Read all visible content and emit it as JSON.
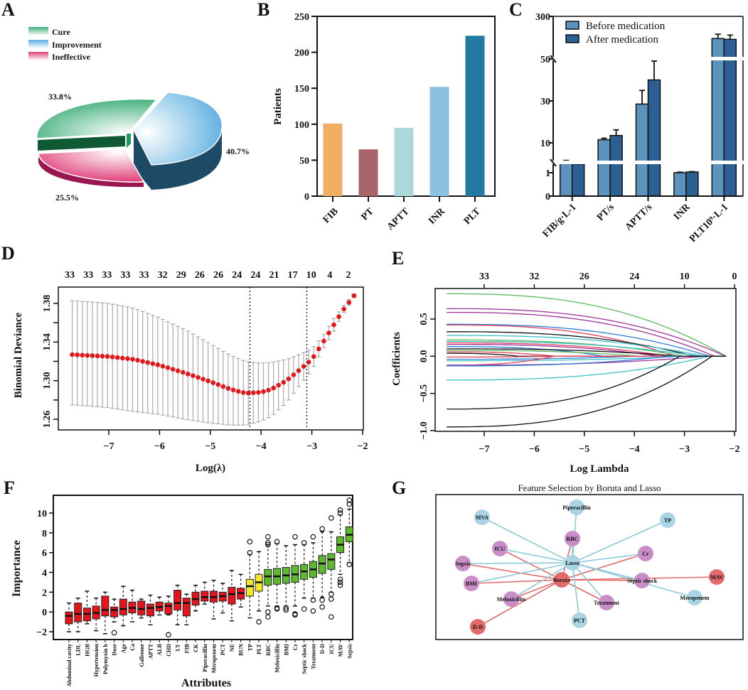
{
  "panels": {
    "A": "A",
    "B": "B",
    "C": "C",
    "D": "D",
    "E": "E",
    "F": "F",
    "G": "G"
  },
  "chart_data": [
    {
      "id": "A",
      "type": "pie",
      "style": "3d-exploded",
      "categories": [
        "Cure",
        "Improvement",
        "Ineffective"
      ],
      "values": [
        33.8,
        40.7,
        25.5
      ],
      "labels": [
        "33.8%",
        "40.7%",
        "25.5%"
      ],
      "colors": [
        "#3dae7a",
        "#5aaee0",
        "#e0407a"
      ],
      "side_colors": [
        "#0f5a35",
        "#1e4a66",
        "#9a1650"
      ],
      "legend": [
        "Cure",
        "Improvement",
        "Ineffective"
      ],
      "legend_position": "top-left"
    },
    {
      "id": "B",
      "type": "bar",
      "categories": [
        "FIB",
        "PT",
        "APTT",
        "INR",
        "PLT"
      ],
      "values": [
        101,
        65,
        95,
        152,
        223
      ],
      "colors": [
        "#f2ae62",
        "#a9646a",
        "#abd9db",
        "#8ec1df",
        "#2479a3"
      ],
      "xlabel": "",
      "ylabel": "Patients",
      "ylim": [
        0,
        250
      ],
      "yticks": [
        0,
        50,
        100,
        150,
        200,
        250
      ]
    },
    {
      "id": "C",
      "type": "bar",
      "categories": [
        "FIB/g·L-1",
        "PT/s",
        "APTT/s",
        "INR",
        "PLT10⁹·L-1"
      ],
      "series": [
        {
          "name": "Before medication",
          "values": [
            3.9,
            11.5,
            28.5,
            1.0,
            170
          ],
          "errors": [
            0.8,
            0.7,
            6.5,
            0.15,
            25
          ],
          "color": "#5b93bd"
        },
        {
          "name": "After medication",
          "values": [
            3.6,
            13.5,
            40,
            1.2,
            165
          ],
          "errors": [
            0.7,
            2.7,
            9,
            0.12,
            25
          ],
          "color": "#2c5f93"
        }
      ],
      "yaxis_breaks": [
        [
          1,
          10
        ],
        [
          50,
          300
        ]
      ],
      "yticks": [
        "0",
        "1",
        "10",
        "30",
        "50",
        "300"
      ],
      "xlabel": "",
      "ylabel": "",
      "legend_position": "top-left"
    },
    {
      "id": "D",
      "type": "scatter",
      "subtype": "lasso-cv-errorbar",
      "xlabel": "Log(λ)",
      "ylabel": "Binomial Deviance",
      "xlim": [
        -7.8,
        -2
      ],
      "ylim": [
        1.25,
        1.39
      ],
      "xticks": [
        "-7",
        "-6",
        "-5",
        "-4",
        "-3",
        "-2"
      ],
      "yticks": [
        "1.26",
        "1.30",
        "1.34",
        "1.38"
      ],
      "top_ticks": [
        "33",
        "33",
        "33",
        "33",
        "33",
        "32",
        "29",
        "26",
        "26",
        "24",
        "24",
        "21",
        "17",
        "10",
        "4",
        "2"
      ],
      "vlines": [
        -4.22,
        -3.1
      ],
      "point_color": "#e8161b",
      "error_color": "#aaaaaa",
      "x_start": -7.72,
      "x_end": -2.17,
      "n_points": 57,
      "curve_points": [
        [
          -7.72,
          1.327
        ],
        [
          -7.0,
          1.325
        ],
        [
          -6.5,
          1.322
        ],
        [
          -6.0,
          1.316
        ],
        [
          -5.5,
          1.308
        ],
        [
          -5.0,
          1.299
        ],
        [
          -4.6,
          1.291
        ],
        [
          -4.3,
          1.287
        ],
        [
          -4.0,
          1.288
        ],
        [
          -3.8,
          1.291
        ],
        [
          -3.5,
          1.3
        ],
        [
          -3.2,
          1.313
        ],
        [
          -3.0,
          1.322
        ],
        [
          -2.8,
          1.338
        ],
        [
          -2.6,
          1.355
        ],
        [
          -2.4,
          1.372
        ],
        [
          -2.17,
          1.388
        ]
      ],
      "upper_points": [
        [
          -7.72,
          1.383
        ],
        [
          -7.0,
          1.38
        ],
        [
          -6.5,
          1.375
        ],
        [
          -6.0,
          1.365
        ],
        [
          -5.5,
          1.353
        ],
        [
          -5.0,
          1.338
        ],
        [
          -4.6,
          1.326
        ],
        [
          -4.3,
          1.32
        ],
        [
          -4.0,
          1.318
        ],
        [
          -3.8,
          1.319
        ],
        [
          -3.5,
          1.322
        ],
        [
          -3.2,
          1.328
        ],
        [
          -3.0,
          1.333
        ],
        [
          -2.8,
          1.345
        ],
        [
          -2.6,
          1.362
        ],
        [
          -2.4,
          1.376
        ],
        [
          -2.17,
          1.39
        ]
      ],
      "lower_points": [
        [
          -7.72,
          1.275
        ],
        [
          -7.0,
          1.272
        ],
        [
          -6.5,
          1.268
        ],
        [
          -6.0,
          1.265
        ],
        [
          -5.5,
          1.26
        ],
        [
          -5.0,
          1.256
        ],
        [
          -4.6,
          1.254
        ],
        [
          -4.3,
          1.254
        ],
        [
          -4.0,
          1.258
        ],
        [
          -3.8,
          1.263
        ],
        [
          -3.5,
          1.277
        ],
        [
          -3.2,
          1.298
        ],
        [
          -3.0,
          1.311
        ],
        [
          -2.8,
          1.331
        ],
        [
          -2.6,
          1.348
        ],
        [
          -2.4,
          1.368
        ],
        [
          -2.17,
          1.386
        ]
      ]
    },
    {
      "id": "E",
      "type": "line",
      "subtype": "lasso-coefficient-path",
      "xlabel": "Log Lambda",
      "ylabel": "Coefficients",
      "xlim": [
        -7.9,
        -2
      ],
      "ylim": [
        -1.05,
        0.9
      ],
      "xticks": [
        "-7",
        "-6",
        "-5",
        "-4",
        "-3",
        "-2"
      ],
      "yticks": [
        "-1.0",
        "-0.5",
        "0.0",
        "0.5"
      ],
      "top_ticks": [
        "33",
        "32",
        "26",
        "24",
        "10",
        "0"
      ],
      "series": [
        {
          "start": 0.84,
          "zero_at": -2.17,
          "color": "#5cb85c"
        },
        {
          "start": 0.64,
          "zero_at": -2.17,
          "color": "#a0329a"
        },
        {
          "start": 0.59,
          "zero_at": -2.4,
          "color": "#a0329a"
        },
        {
          "start": 0.43,
          "zero_at": -2.5,
          "color": "#2a7fd4"
        },
        {
          "start": 0.42,
          "zero_at": -3.2,
          "color": "#e0405a"
        },
        {
          "start": 0.33,
          "zero_at": -2.8,
          "color": "#111111"
        },
        {
          "start": 0.28,
          "zero_at": -2.6,
          "color": "#3fbfc5"
        },
        {
          "start": 0.22,
          "zero_at": -3.0,
          "color": "#5cb85c"
        },
        {
          "start": 0.2,
          "zero_at": -2.7,
          "color": "#3fbfc5"
        },
        {
          "start": 0.18,
          "zero_at": -3.3,
          "color": "#e0405a"
        },
        {
          "start": 0.16,
          "zero_at": -3.5,
          "color": "#a0329a"
        },
        {
          "start": 0.13,
          "zero_at": -4.6,
          "color": "#2a7fd4"
        },
        {
          "start": 0.1,
          "zero_at": -3.1,
          "color": "#111111"
        },
        {
          "start": 0.08,
          "zero_at": -3.9,
          "color": "#5cb85c"
        },
        {
          "start": 0.06,
          "zero_at": -5.6,
          "color": "#e0405a"
        },
        {
          "start": 0.04,
          "zero_at": -6.3,
          "color": "#111111"
        },
        {
          "start": -0.01,
          "zero_at": -5.5,
          "color": "#e0405a"
        },
        {
          "start": -0.04,
          "zero_at": -4.0,
          "color": "#2a7fd4"
        },
        {
          "start": -0.06,
          "zero_at": -3.0,
          "color": "#3fbfc5"
        },
        {
          "start": -0.12,
          "zero_at": -5.6,
          "color": "#e0405a"
        },
        {
          "start": -0.12,
          "zero_at": -2.6,
          "color": "#a0329a"
        },
        {
          "start": -0.13,
          "zero_at": -3.3,
          "color": "#2a7fd4"
        },
        {
          "start": -0.32,
          "zero_at": -2.5,
          "color": "#3fbfc5"
        },
        {
          "start": -0.71,
          "zero_at": -3.1,
          "color": "#111111"
        },
        {
          "start": -0.95,
          "zero_at": -2.45,
          "color": "#111111"
        }
      ]
    },
    {
      "id": "F",
      "type": "box",
      "xlabel": "Attributes",
      "ylabel": "Importance",
      "ylim": [
        -2.7,
        11.5
      ],
      "yticks": [
        "-2",
        "0",
        "2",
        "4",
        "6",
        "8",
        "10"
      ],
      "categories": [
        "Abdominal cavity",
        "LDL",
        "HGB",
        "Hypertension",
        "Polymyxin b",
        "Dose",
        "Age",
        "Ca",
        "Gallstone",
        "APTT",
        "ALB",
        "CHD",
        "LY",
        "FIB",
        "CK",
        "Piperacillin",
        "Meropenem",
        "PCT",
        "NE",
        "BUN",
        "TP",
        "PLT",
        "RBC",
        "Meloxicillin",
        "BMI",
        "Cr",
        "Septic shock",
        "Treatment",
        "D-D",
        "ICU",
        "MAV",
        "Sepsis"
      ],
      "status": [
        "rejected",
        "rejected",
        "rejected",
        "rejected",
        "rejected",
        "rejected",
        "rejected",
        "rejected",
        "rejected",
        "rejected",
        "rejected",
        "rejected",
        "rejected",
        "rejected",
        "rejected",
        "rejected",
        "rejected",
        "rejected",
        "rejected",
        "rejected",
        "tentative",
        "tentative",
        "confirmed",
        "confirmed",
        "confirmed",
        "confirmed",
        "confirmed",
        "confirmed",
        "confirmed",
        "confirmed",
        "confirmed",
        "confirmed"
      ],
      "status_colors": {
        "rejected": "#e8141b",
        "tentative": "#f0ea2a",
        "confirmed": "#5dba2e"
      },
      "boxes": [
        [
          -2.0,
          -1.2,
          -0.4,
          0.0,
          0.9
        ],
        [
          -2.0,
          -1.0,
          -0.2,
          0.9,
          1.4
        ],
        [
          -1.2,
          -0.9,
          -0.2,
          0.4,
          2.1
        ],
        [
          -1.9,
          -0.7,
          -0.1,
          0.6,
          1.4
        ],
        [
          -2.2,
          -0.4,
          0.2,
          1.6,
          2.0
        ],
        [
          -1.0,
          -0.5,
          0.2,
          0.5,
          1.3
        ],
        [
          -1.4,
          -0.3,
          0.3,
          1.3,
          2.6
        ],
        [
          -1.0,
          -0.1,
          0.4,
          1.0,
          2.2
        ],
        [
          -0.6,
          -0.3,
          0.3,
          1.1,
          1.3
        ],
        [
          -1.3,
          -0.4,
          0.4,
          0.8,
          1.7
        ],
        [
          -0.3,
          0.1,
          0.5,
          1.0,
          1.5
        ],
        [
          -0.3,
          -0.2,
          0.6,
          0.9,
          1.6
        ],
        [
          -1.3,
          0.2,
          0.9,
          2.2,
          2.7
        ],
        [
          -1.3,
          -0.4,
          0.9,
          1.4,
          1.8
        ],
        [
          0.1,
          0.7,
          1.3,
          2.0,
          2.7
        ],
        [
          0.8,
          1.1,
          1.5,
          2.1,
          3.0
        ],
        [
          -0.7,
          1.0,
          1.5,
          2.1,
          3.2
        ],
        [
          -0.1,
          1.1,
          1.6,
          2.0,
          2.9
        ],
        [
          -0.9,
          0.8,
          1.8,
          2.5,
          4.2
        ],
        [
          0.5,
          1.3,
          1.9,
          2.4,
          3.8
        ],
        [
          -0.6,
          1.6,
          2.6,
          3.3,
          5.8
        ],
        [
          0.1,
          2.1,
          3.0,
          3.8,
          6.1
        ],
        [
          0.6,
          2.7,
          3.6,
          4.3,
          6.8
        ],
        [
          0.6,
          2.8,
          3.6,
          4.4,
          6.9
        ],
        [
          0.6,
          2.9,
          3.7,
          4.5,
          6.7
        ],
        [
          0.6,
          3.0,
          3.8,
          4.7,
          6.8
        ],
        [
          1.4,
          3.3,
          4.1,
          4.8,
          6.8
        ],
        [
          1.4,
          3.5,
          4.3,
          5.1,
          7.0
        ],
        [
          1.5,
          3.9,
          4.9,
          5.7,
          8.1
        ],
        [
          2.0,
          4.3,
          5.3,
          5.9,
          8.1
        ],
        [
          3.8,
          6.0,
          6.8,
          7.6,
          9.8
        ],
        [
          5.0,
          7.1,
          7.8,
          8.6,
          10.4
        ]
      ],
      "outliers": [
        [],
        [],
        [],
        [],
        [],
        [
          -2.1
        ],
        [],
        [],
        [],
        [],
        [],
        [
          -2.3
        ],
        [],
        [],
        [],
        [],
        [],
        [],
        [],
        [],
        [
          6.0,
          7.1
        ],
        [
          -1.0
        ],
        [
          -0.5,
          0.0,
          6.8,
          7.0,
          7.6
        ],
        [
          0.3,
          0.4,
          7.1
        ],
        [
          0.2,
          0.4
        ],
        [
          -0.3,
          -0.2,
          7.6
        ],
        [
          0.3,
          7.0
        ],
        [
          0.1,
          1.2,
          7.6
        ],
        [
          0.5,
          1.2,
          8.4
        ],
        [
          -0.5,
          1.3,
          1.8,
          9.5
        ],
        [
          2.7,
          3.0,
          3.3,
          10.0,
          10.3
        ],
        [
          4.8,
          10.9,
          11.3
        ]
      ]
    },
    {
      "id": "G",
      "type": "network",
      "title": "Feature Selection by Boruta and Lasso",
      "hubs": [
        {
          "id": "Lasso",
          "color": "#a9d4e3",
          "edge_color": "#8ec8dd"
        },
        {
          "id": "Boruta",
          "color": "#e36a6b",
          "edge_color": "#e36a6b"
        }
      ],
      "node_colors": {
        "lasso_only": "#a9d4e3",
        "both": "#c98dc7",
        "boruta_only": "#e36a6b"
      },
      "nodes": [
        {
          "id": "Piperacillin",
          "group": "lasso_only"
        },
        {
          "id": "MVA",
          "group": "lasso_only"
        },
        {
          "id": "TP",
          "group": "lasso_only"
        },
        {
          "id": "RBC",
          "group": "both"
        },
        {
          "id": "ICU",
          "group": "both"
        },
        {
          "id": "Cr",
          "group": "both"
        },
        {
          "id": "Sepsis",
          "group": "both"
        },
        {
          "id": "BMI",
          "group": "both"
        },
        {
          "id": "Septic shock",
          "group": "both"
        },
        {
          "id": "MAV",
          "group": "boruta_only"
        },
        {
          "id": "Meloxicillin",
          "group": "both"
        },
        {
          "id": "Treatment",
          "group": "both"
        },
        {
          "id": "Meropenem",
          "group": "lasso_only"
        },
        {
          "id": "PCT",
          "group": "lasso_only"
        },
        {
          "id": "D-D",
          "group": "boruta_only"
        }
      ]
    }
  ]
}
